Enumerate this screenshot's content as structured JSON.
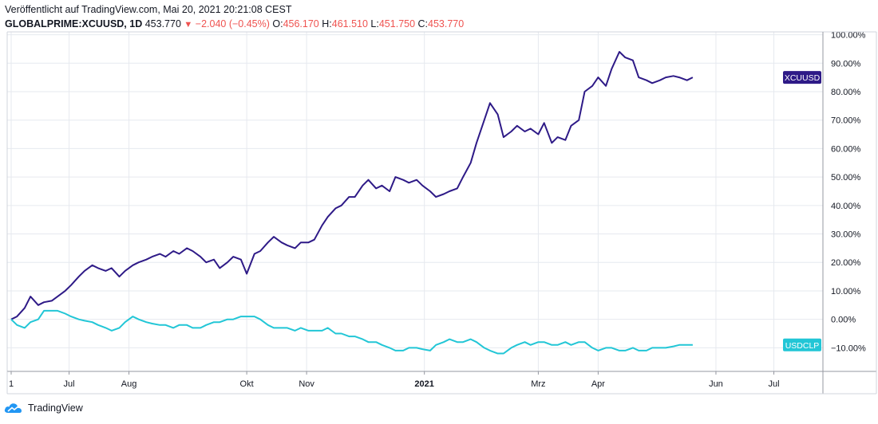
{
  "header": {
    "published": "Veröffentlicht auf TradingView.com, Mai 20, 2021 20:21:08 CEST",
    "symbol": "GLOBALPRIME:XCUUSD, 1D",
    "last": "453.770",
    "change": "−2.040 (−0.45%)",
    "open_label": "O:",
    "open": "456.170",
    "high_label": "H:",
    "high": "461.510",
    "low_label": "L:",
    "low": "451.750",
    "close_label": "C:",
    "close": "453.770"
  },
  "footer": {
    "brand": "TradingView"
  },
  "colors": {
    "xcuusd": "#2e1a87",
    "usdclp": "#22c6d6",
    "down": "#ef5350",
    "grid": "#e6e9ef"
  },
  "chart_data": {
    "type": "line",
    "y_unit": "%",
    "ylim": [
      -18.3,
      101
    ],
    "y_ticks": [
      100,
      90,
      80,
      70,
      60,
      50,
      40,
      30,
      20,
      10,
      0,
      -10
    ],
    "y_tick_labels": [
      "100.00%",
      "90.00%",
      "80.00%",
      "70.00%",
      "60.00%",
      "50.00%",
      "40.00%",
      "30.00%",
      "20.00%",
      "10.00%",
      "0.00%",
      "−10.00%"
    ],
    "x_axis_labels": [
      "1",
      "Jul",
      "Aug",
      "Okt",
      "Nov",
      "2021",
      "Mrz",
      "Apr",
      "Jun",
      "Jul"
    ],
    "x_axis_label_dates": [
      "2020-06-01",
      "2020-07-01",
      "2020-08-01",
      "2020-10-01",
      "2020-11-01",
      "2021-01-01",
      "2021-03-01",
      "2021-04-01",
      "2021-06-01",
      "2021-07-01"
    ],
    "grid": true,
    "series": [
      {
        "name": "XCUUSD",
        "last_label": "XCUUSD",
        "x": [
          "2020-06-01",
          "2020-06-04",
          "2020-06-08",
          "2020-06-11",
          "2020-06-15",
          "2020-06-18",
          "2020-06-22",
          "2020-06-25",
          "2020-06-29",
          "2020-07-02",
          "2020-07-06",
          "2020-07-09",
          "2020-07-13",
          "2020-07-16",
          "2020-07-20",
          "2020-07-23",
          "2020-07-27",
          "2020-07-30",
          "2020-08-03",
          "2020-08-06",
          "2020-08-10",
          "2020-08-13",
          "2020-08-17",
          "2020-08-20",
          "2020-08-24",
          "2020-08-27",
          "2020-08-31",
          "2020-09-03",
          "2020-09-07",
          "2020-09-10",
          "2020-09-14",
          "2020-09-17",
          "2020-09-21",
          "2020-09-24",
          "2020-09-28",
          "2020-10-01",
          "2020-10-05",
          "2020-10-08",
          "2020-10-12",
          "2020-10-15",
          "2020-10-19",
          "2020-10-22",
          "2020-10-26",
          "2020-10-29",
          "2020-11-02",
          "2020-11-05",
          "2020-11-09",
          "2020-11-12",
          "2020-11-16",
          "2020-11-19",
          "2020-11-23",
          "2020-11-26",
          "2020-11-30",
          "2020-12-03",
          "2020-12-07",
          "2020-12-10",
          "2020-12-14",
          "2020-12-17",
          "2020-12-21",
          "2020-12-24",
          "2020-12-28",
          "2020-12-31",
          "2021-01-04",
          "2021-01-07",
          "2021-01-11",
          "2021-01-14",
          "2021-01-18",
          "2021-01-21",
          "2021-01-25",
          "2021-01-28",
          "2021-02-01",
          "2021-02-04",
          "2021-02-08",
          "2021-02-11",
          "2021-02-15",
          "2021-02-18",
          "2021-02-22",
          "2021-02-25",
          "2021-03-01",
          "2021-03-04",
          "2021-03-08",
          "2021-03-11",
          "2021-03-15",
          "2021-03-18",
          "2021-03-22",
          "2021-03-25",
          "2021-03-29",
          "2021-04-01",
          "2021-04-05",
          "2021-04-08",
          "2021-04-12",
          "2021-04-15",
          "2021-04-19",
          "2021-04-22",
          "2021-04-26",
          "2021-04-29",
          "2021-05-03",
          "2021-05-06",
          "2021-05-10",
          "2021-05-13",
          "2021-05-17",
          "2021-05-20"
        ],
        "values": [
          0,
          1,
          4,
          8,
          5,
          6,
          6.5,
          8,
          10,
          12,
          15,
          17,
          19,
          18,
          17,
          18,
          15,
          17,
          19,
          20,
          21,
          22,
          23,
          22,
          24,
          23,
          25,
          24,
          22,
          20,
          21,
          18,
          20,
          22,
          21,
          16,
          23,
          24,
          27,
          29,
          27,
          26,
          25,
          27,
          27,
          28,
          33,
          36,
          39,
          40,
          43,
          43,
          47,
          49,
          46,
          47,
          45,
          50,
          49,
          48,
          49,
          47,
          45,
          43,
          44,
          45,
          46,
          50,
          55,
          62,
          70,
          76,
          72,
          64,
          66,
          68,
          66,
          67,
          65,
          69,
          62,
          64,
          63,
          68,
          70,
          80,
          82,
          85,
          82,
          88,
          94,
          92,
          91,
          85,
          84,
          83,
          84,
          85,
          85.5,
          85,
          84,
          85
        ],
        "color": "#2e1a87"
      },
      {
        "name": "USDCLP",
        "last_label": "USDCLP",
        "x": [
          "2020-06-01",
          "2020-06-04",
          "2020-06-08",
          "2020-06-11",
          "2020-06-15",
          "2020-06-18",
          "2020-06-22",
          "2020-06-25",
          "2020-06-29",
          "2020-07-02",
          "2020-07-06",
          "2020-07-09",
          "2020-07-13",
          "2020-07-16",
          "2020-07-20",
          "2020-07-23",
          "2020-07-27",
          "2020-07-30",
          "2020-08-03",
          "2020-08-06",
          "2020-08-10",
          "2020-08-13",
          "2020-08-17",
          "2020-08-20",
          "2020-08-24",
          "2020-08-27",
          "2020-08-31",
          "2020-09-03",
          "2020-09-07",
          "2020-09-10",
          "2020-09-14",
          "2020-09-17",
          "2020-09-21",
          "2020-09-24",
          "2020-09-28",
          "2020-10-01",
          "2020-10-05",
          "2020-10-08",
          "2020-10-12",
          "2020-10-15",
          "2020-10-19",
          "2020-10-22",
          "2020-10-26",
          "2020-10-29",
          "2020-11-02",
          "2020-11-05",
          "2020-11-09",
          "2020-11-12",
          "2020-11-16",
          "2020-11-19",
          "2020-11-23",
          "2020-11-26",
          "2020-11-30",
          "2020-12-03",
          "2020-12-07",
          "2020-12-10",
          "2020-12-14",
          "2020-12-17",
          "2020-12-21",
          "2020-12-24",
          "2020-12-28",
          "2020-12-31",
          "2021-01-04",
          "2021-01-07",
          "2021-01-11",
          "2021-01-14",
          "2021-01-18",
          "2021-01-21",
          "2021-01-25",
          "2021-01-28",
          "2021-02-01",
          "2021-02-04",
          "2021-02-08",
          "2021-02-11",
          "2021-02-15",
          "2021-02-18",
          "2021-02-22",
          "2021-02-25",
          "2021-03-01",
          "2021-03-04",
          "2021-03-08",
          "2021-03-11",
          "2021-03-15",
          "2021-03-18",
          "2021-03-22",
          "2021-03-25",
          "2021-03-29",
          "2021-04-01",
          "2021-04-05",
          "2021-04-08",
          "2021-04-12",
          "2021-04-15",
          "2021-04-19",
          "2021-04-22",
          "2021-04-26",
          "2021-04-29",
          "2021-05-03",
          "2021-05-06",
          "2021-05-10",
          "2021-05-13",
          "2021-05-17",
          "2021-05-20"
        ],
        "values": [
          0,
          -2,
          -3,
          -1,
          0,
          3,
          3,
          3,
          2,
          1,
          0,
          -0.5,
          -1,
          -2,
          -3,
          -4,
          -3,
          -1,
          1,
          0,
          -1,
          -1.5,
          -2,
          -2,
          -3,
          -2,
          -2,
          -3,
          -3,
          -2,
          -1,
          -1,
          0,
          0,
          1,
          1,
          1,
          0,
          -2,
          -3,
          -3,
          -3,
          -4,
          -3,
          -4,
          -4,
          -4,
          -3,
          -5,
          -5,
          -6,
          -6,
          -7,
          -8,
          -8,
          -9,
          -10,
          -11,
          -11,
          -10,
          -10,
          -10.5,
          -11,
          -9,
          -8,
          -7,
          -8,
          -8,
          -7,
          -8,
          -10,
          -11,
          -12,
          -12,
          -10,
          -9,
          -8,
          -9,
          -8,
          -8,
          -9,
          -9,
          -8,
          -9,
          -8,
          -8,
          -10,
          -11,
          -10,
          -10,
          -11,
          -11,
          -10,
          -11,
          -11,
          -10,
          -10,
          -10,
          -9.5,
          -9,
          -9,
          -9
        ],
        "color": "#22c6d6"
      }
    ]
  }
}
